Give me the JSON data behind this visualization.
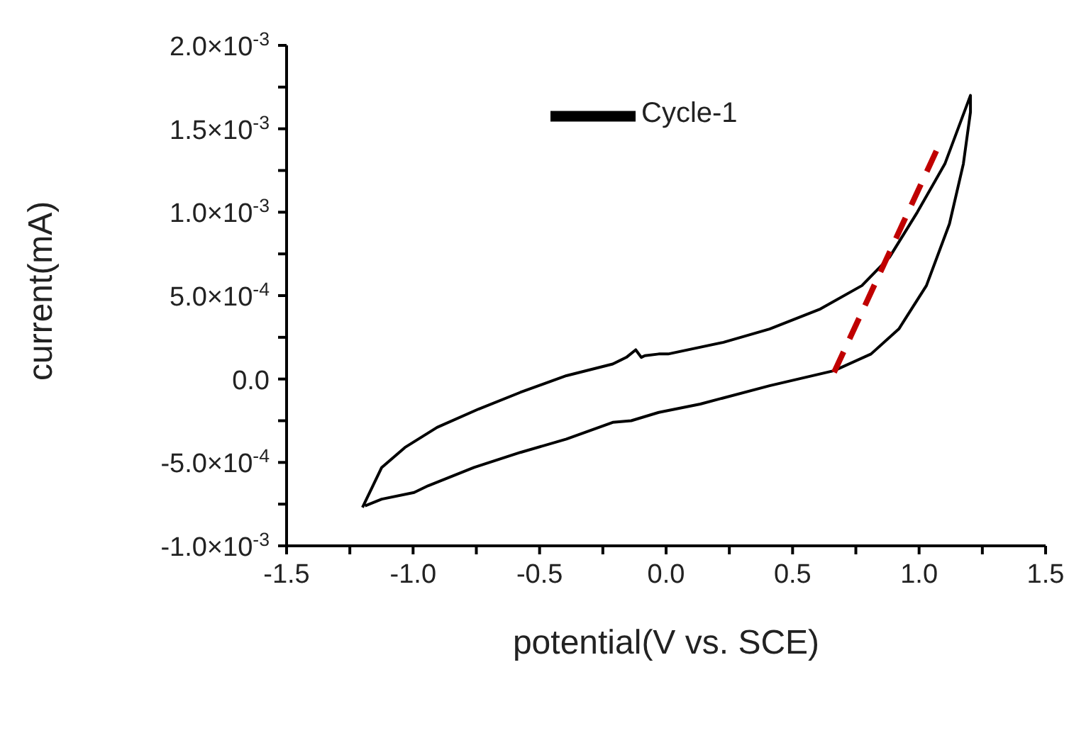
{
  "chart_data": {
    "type": "line",
    "xlabel": "potential(V vs. SCE)",
    "ylabel": "current(mA)",
    "xlim": [
      -1.5,
      1.5
    ],
    "xticks": [
      -1.5,
      {
        "value": -1.25,
        "label": null
      },
      {
        "value": -1,
        "label": "-1.0"
      },
      {
        "value": -0.75,
        "label": null
      },
      -0.5,
      {
        "value": -0.25,
        "label": null
      },
      {
        "value": 0,
        "label": "0.0"
      },
      {
        "value": 0.25,
        "label": null
      },
      0.5,
      {
        "value": 0.75,
        "label": null
      },
      {
        "value": 1,
        "label": "1.0"
      },
      {
        "value": 1.25,
        "label": null
      },
      1.5
    ],
    "ylim": [
      -0.001,
      0.002
    ],
    "yticks": [
      {
        "value": -0.001,
        "label": "-1.0×10$^{-3}$"
      },
      {
        "value": -0.00075,
        "label": null
      },
      {
        "value": -0.0005,
        "label": "-5.0×10$^{-4}$"
      },
      {
        "value": -0.00025,
        "label": null
      },
      {
        "value": 0,
        "label": "0.0"
      },
      {
        "value": 0.00025,
        "label": null
      },
      {
        "value": 0.0005,
        "label": "5.0×10$^{-4}$"
      },
      {
        "value": 0.00075,
        "label": null
      },
      {
        "value": 0.001,
        "label": "1.0×10$^{-3}$"
      },
      {
        "value": 0.00125,
        "label": null
      },
      {
        "value": 0.0015,
        "label": "1.5×10$^{-3}$"
      },
      {
        "value": 0.00175,
        "label": null
      },
      {
        "value": 0.002,
        "label": "2.0×10$^{-3}$"
      }
    ],
    "legend": "top",
    "marker": "none",
    "grid": false,
    "series": [
      {
        "name": "Cycle-1",
        "color": "#000000",
        "line_style": "solid",
        "x": [
          -1.2,
          -1.124,
          -1.032,
          -0.905,
          -0.741,
          -0.576,
          -0.394,
          -0.211,
          -0.157,
          -0.12,
          -0.098,
          -0.084,
          -0.029,
          0.008,
          0.227,
          0.409,
          0.61,
          0.774,
          0.883,
          0.993,
          1.102,
          1.203,
          1.203,
          1.175,
          1.12,
          1.029,
          0.92,
          0.81,
          0.664,
          0.409,
          0.135,
          -0.029,
          -0.138,
          -0.211,
          -0.394,
          -0.576,
          -0.759,
          -0.941,
          -0.996,
          -1.124,
          -1.19
        ],
        "values": [
          -0.00077,
          -0.00053,
          -0.00041,
          -0.00029,
          -0.00018,
          -8e-05,
          2e-05,
          9e-05,
          0.00013,
          0.000175,
          0.00013,
          0.00014,
          0.00015,
          0.00015,
          0.00022,
          0.0003,
          0.00042,
          0.00056,
          0.00073,
          0.001,
          0.00129,
          0.0017,
          0.0016,
          0.00129,
          0.00093,
          0.00056,
          0.0003,
          0.00015,
          5e-05,
          -4e-05,
          -0.00015,
          -0.0002,
          -0.00025,
          -0.00026,
          -0.00036,
          -0.00044,
          -0.00053,
          -0.00064,
          -0.00068,
          -0.00072,
          -0.00076
        ]
      },
      {
        "type": "line",
        "color": "#c00000",
        "line_style": "dashed",
        "x": [
          0.664,
          1.069
        ],
        "values": [
          4e-05,
          0.00137
        ]
      }
    ]
  }
}
